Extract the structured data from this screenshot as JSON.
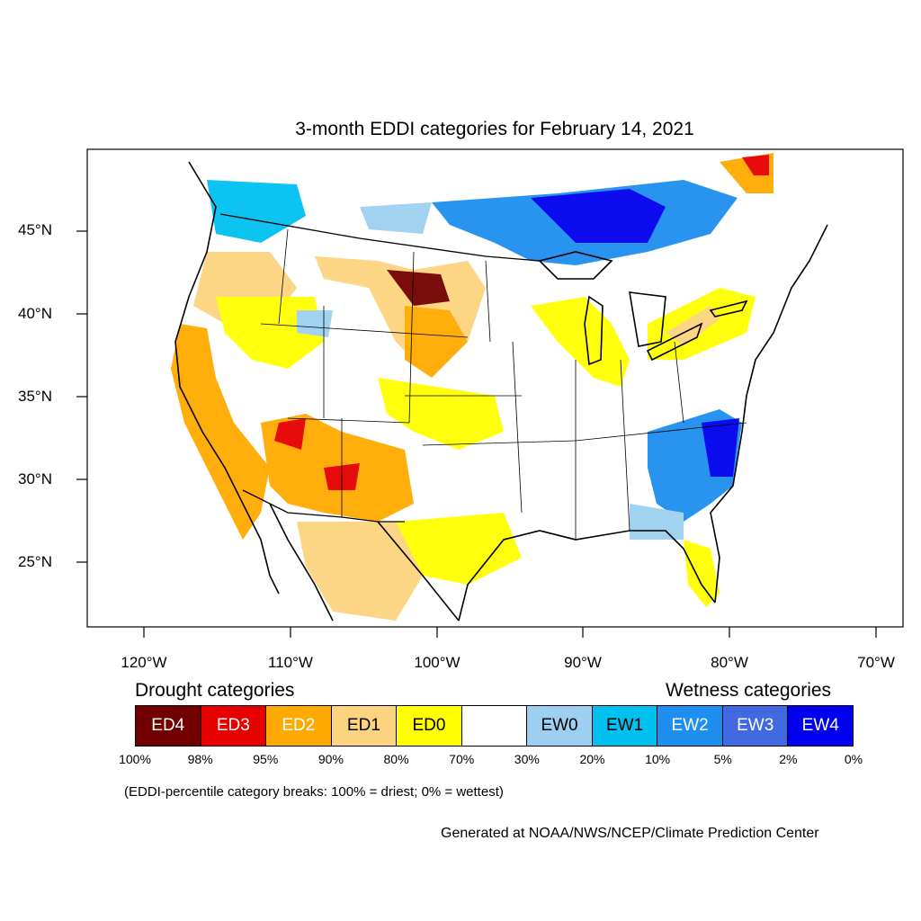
{
  "title": "3-month EDDI categories for February 14, 2021",
  "axes": {
    "y_labels": [
      "45°N",
      "40°N",
      "35°N",
      "30°N",
      "25°N"
    ],
    "x_labels": [
      "120°W",
      "110°W",
      "100°W",
      "90°W",
      "80°W",
      "70°W"
    ]
  },
  "legend": {
    "drought_heading": "Drought categories",
    "wetness_heading": "Wetness categories",
    "categories": [
      {
        "label": "ED4",
        "color": "#730000",
        "text_color": "#ffffff"
      },
      {
        "label": "ED3",
        "color": "#e60000",
        "text_color": "#ffffff"
      },
      {
        "label": "ED2",
        "color": "#ffaa00",
        "text_color": "#ffffff"
      },
      {
        "label": "ED1",
        "color": "#fcd37f",
        "text_color": "#000000"
      },
      {
        "label": "ED0",
        "color": "#ffff00",
        "text_color": "#000000"
      },
      {
        "label": "",
        "color": "#ffffff",
        "text_color": "#000000"
      },
      {
        "label": "EW0",
        "color": "#9dd0f0",
        "text_color": "#000000"
      },
      {
        "label": "EW1",
        "color": "#00c0f0",
        "text_color": "#000000"
      },
      {
        "label": "EW2",
        "color": "#1e8ff0",
        "text_color": "#ffffff"
      },
      {
        "label": "EW3",
        "color": "#4169e1",
        "text_color": "#ffffff"
      },
      {
        "label": "EW4",
        "color": "#0000ee",
        "text_color": "#ffffff"
      }
    ],
    "percentiles": [
      "100%",
      "98%",
      "95%",
      "90%",
      "80%",
      "70%",
      "30%",
      "20%",
      "10%",
      "5%",
      "2%",
      "0%"
    ]
  },
  "note": "(EDDI-percentile category breaks: 100% = driest; 0% = wettest)",
  "credit": "Generated at NOAA/NWS/NCEP/Climate Prediction Center"
}
